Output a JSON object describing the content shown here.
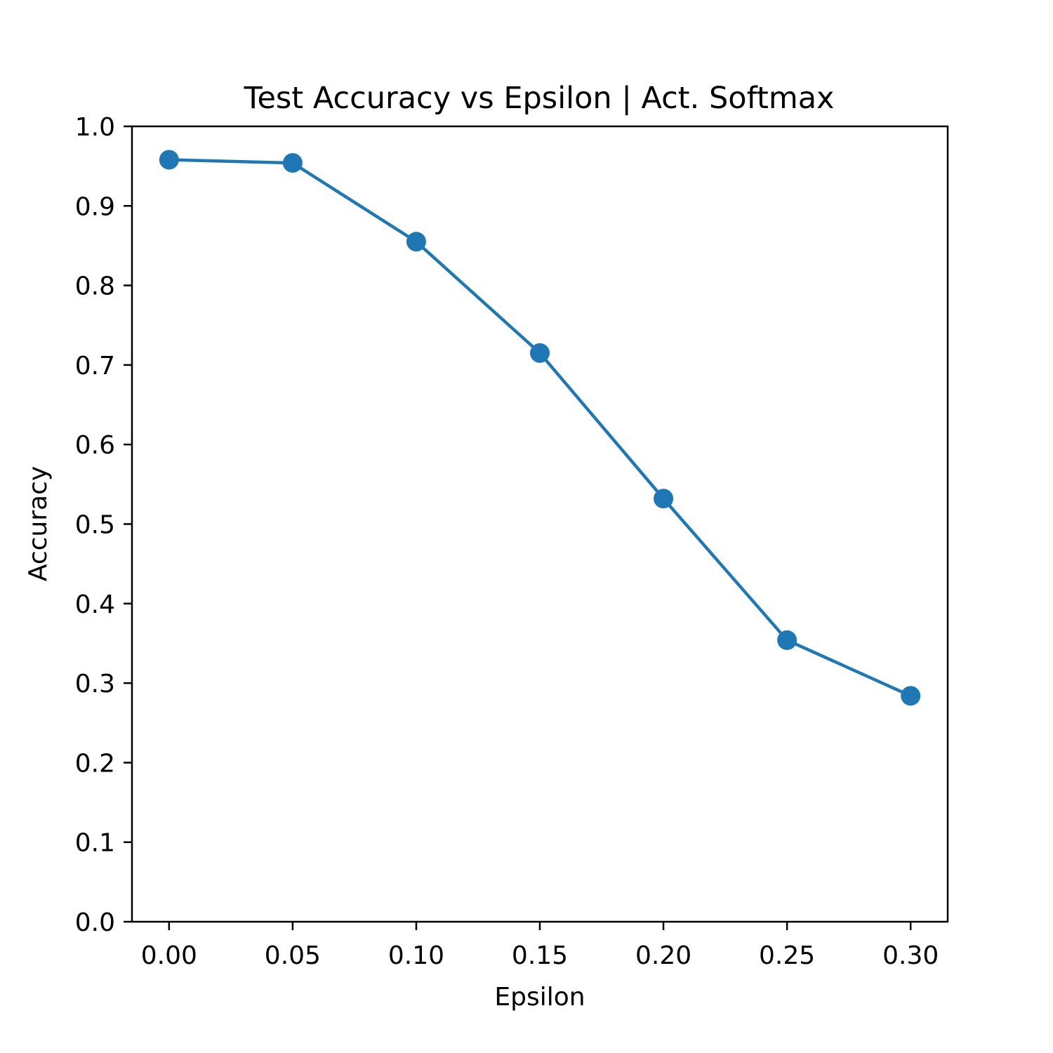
{
  "chart_data": {
    "type": "line",
    "title": "Test Accuracy vs Epsilon | Act. Softmax",
    "xlabel": "Epsilon",
    "ylabel": "Accuracy",
    "x": [
      0.0,
      0.05,
      0.1,
      0.15,
      0.2,
      0.25,
      0.3
    ],
    "series": [
      {
        "values": [
          0.958,
          0.954,
          0.855,
          0.715,
          0.532,
          0.354,
          0.284
        ],
        "color": "#1f77b4",
        "marker": "circle"
      }
    ],
    "xticks": [
      "0.00",
      "0.05",
      "0.10",
      "0.15",
      "0.20",
      "0.25",
      "0.30"
    ],
    "yticks": [
      "0.0",
      "0.1",
      "0.2",
      "0.3",
      "0.4",
      "0.5",
      "0.6",
      "0.7",
      "0.8",
      "0.9",
      "1.0"
    ],
    "xlim": [
      -0.015,
      0.315
    ],
    "ylim": [
      0.0,
      1.0
    ],
    "grid": false,
    "legend": "none"
  }
}
